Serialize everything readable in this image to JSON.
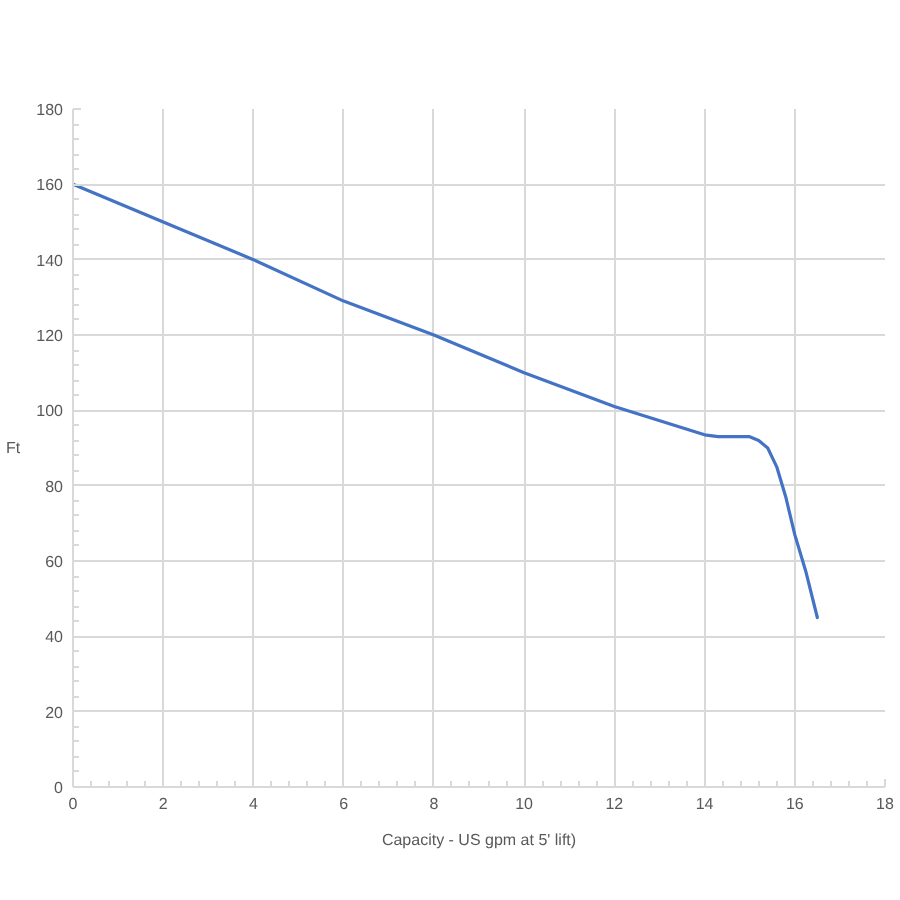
{
  "chart_data": {
    "type": "line",
    "xlabel": "Capacity - US gpm at 5' lift)",
    "ylabel": "Ft",
    "x": [
      0,
      2,
      4,
      6,
      8,
      10,
      12,
      14,
      14.3,
      14.7,
      15,
      15.2,
      15.4,
      15.6,
      15.8,
      16,
      16.25,
      16.5
    ],
    "series": [
      {
        "color": "#4472c4",
        "values": [
          160,
          150,
          140,
          129,
          120,
          110,
          101,
          93.5,
          93,
          93,
          93,
          92,
          90,
          85,
          77,
          67,
          57,
          45
        ]
      }
    ],
    "xlim": [
      0,
      18
    ],
    "ylim": [
      0,
      180
    ],
    "xticks": [
      0,
      2,
      4,
      6,
      8,
      10,
      12,
      14,
      16,
      18
    ],
    "yticks": [
      0,
      20,
      40,
      60,
      80,
      100,
      120,
      140,
      160,
      180
    ],
    "grid": true,
    "line_style": "solid"
  }
}
